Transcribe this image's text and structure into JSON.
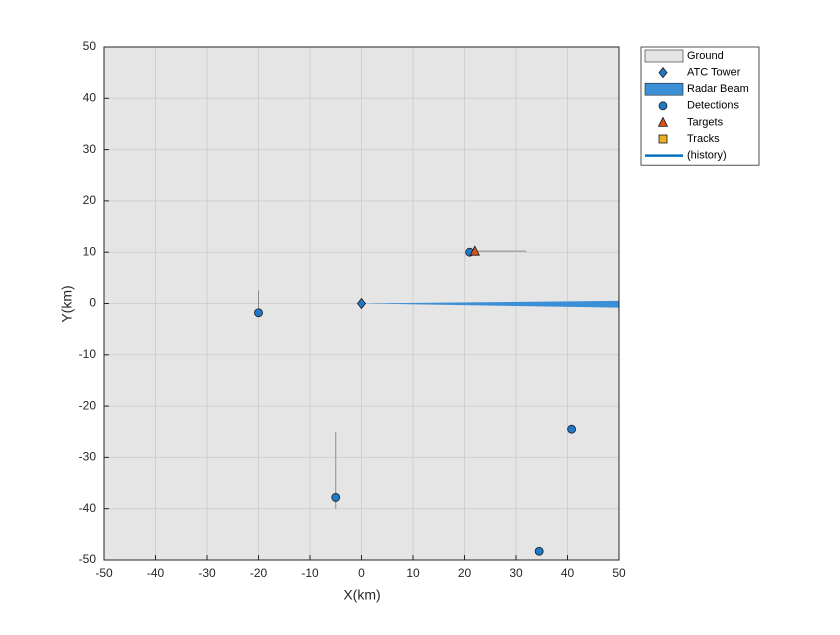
{
  "chart_data": {
    "type": "scatter",
    "xlabel": "X(km)",
    "ylabel": "Y(km)",
    "xlim": [
      -50,
      50
    ],
    "ylim": [
      -50,
      50
    ],
    "xticks": [
      -50,
      -40,
      -30,
      -20,
      -10,
      0,
      10,
      20,
      30,
      40,
      50
    ],
    "yticks": [
      -50,
      -40,
      -30,
      -20,
      -10,
      0,
      10,
      20,
      30,
      40,
      50
    ],
    "grid": true,
    "legend": "outside-top-right",
    "series": [
      {
        "name": "Ground",
        "color": "#e5e5e5",
        "marker": "patch",
        "x": [],
        "values": []
      },
      {
        "name": "ATC Tower",
        "color": "#1f78c8",
        "marker": "diamond",
        "x": [
          0
        ],
        "values": [
          0
        ]
      },
      {
        "name": "Radar Beam",
        "color": "#3a8fd6",
        "marker": "area",
        "x": [
          0,
          50,
          50
        ],
        "values": [
          0,
          0.5,
          -0.8
        ]
      },
      {
        "name": "Detections",
        "color": "#1f78c8",
        "marker": "circle",
        "x": [
          -20,
          -5,
          21,
          40.8,
          34.5
        ],
        "values": [
          -1.8,
          -37.8,
          10,
          -24.5,
          -48.3
        ]
      },
      {
        "name": "Targets",
        "color": "#d95319",
        "marker": "triangle",
        "x": [
          22
        ],
        "values": [
          10.2
        ]
      },
      {
        "name": "Tracks",
        "color": "#edb120",
        "marker": "square",
        "x": [],
        "values": []
      },
      {
        "name": "(history)",
        "color": "#0072bd",
        "marker": "line",
        "x": [],
        "values": []
      }
    ],
    "vectors": {
      "color": "#8c8c8c",
      "segments": [
        {
          "x": [
            22,
            32
          ],
          "values": [
            10.2,
            10.2
          ]
        },
        {
          "x": [
            -20,
            -20
          ],
          "values": [
            -1.5,
            2.5
          ]
        },
        {
          "x": [
            -5,
            -5
          ],
          "values": [
            -40,
            -25
          ]
        }
      ]
    }
  }
}
